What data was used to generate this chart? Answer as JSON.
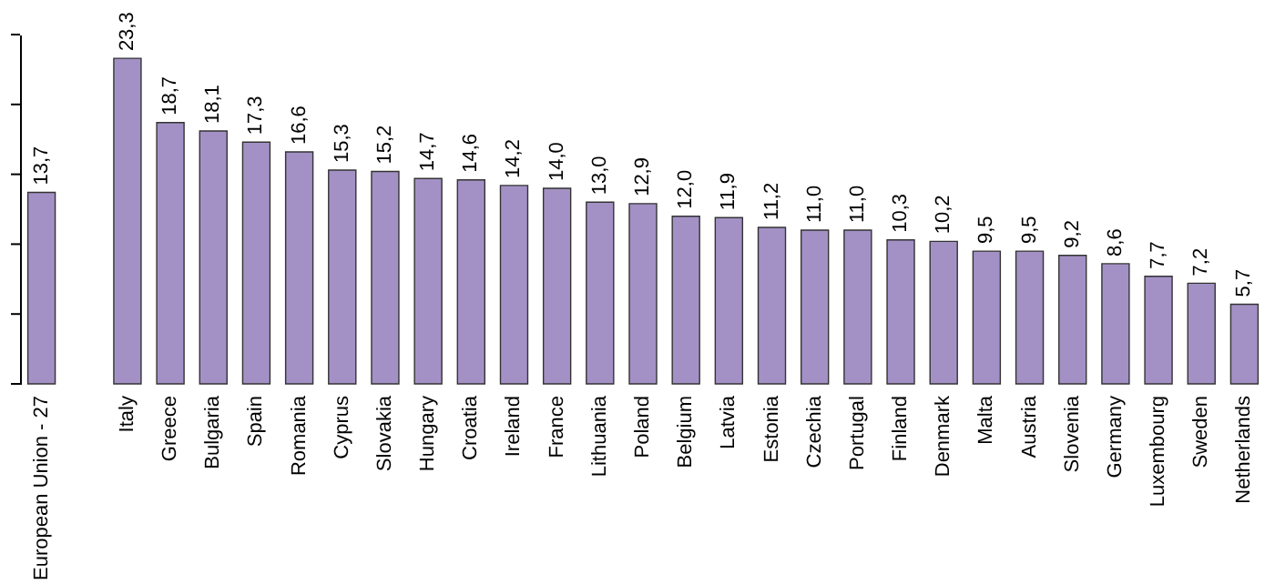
{
  "chart_data": {
    "type": "bar",
    "categories": [
      "European Union - 27",
      null,
      "Italy",
      "Greece",
      "Bulgaria",
      "Spain",
      "Romania",
      "Cyprus",
      "Slovakia",
      "Hungary",
      "Croatia",
      "Ireland",
      "France",
      "Lithuania",
      "Poland",
      "Belgium",
      "Latvia",
      "Estonia",
      "Czechia",
      "Portugal",
      "Finland",
      "Denmark",
      "Malta",
      "Austria",
      "Slovenia",
      "Germany",
      "Luxembourg",
      "Sweden",
      "Netherlands"
    ],
    "values": [
      13.7,
      null,
      23.3,
      18.7,
      18.1,
      17.3,
      16.6,
      15.3,
      15.2,
      14.7,
      14.6,
      14.2,
      14.0,
      13.0,
      12.9,
      12.0,
      11.9,
      11.2,
      11.0,
      11.0,
      10.3,
      10.2,
      9.5,
      9.5,
      9.2,
      8.6,
      7.7,
      7.2,
      5.7
    ],
    "value_labels": [
      "13,7",
      null,
      "23,3",
      "18,7",
      "18,1",
      "17,3",
      "16,6",
      "15,3",
      "15,2",
      "14,7",
      "14,6",
      "14,2",
      "14,0",
      "13,0",
      "12,9",
      "12,0",
      "11,9",
      "11,2",
      "11,0",
      "11,0",
      "10,3",
      "10,2",
      "9,5",
      "9,5",
      "9,2",
      "8,6",
      "7,7",
      "7,2",
      "5,7"
    ],
    "color": "#a391c6",
    "ylim": [
      0,
      25
    ],
    "yticks": [
      {
        "value": 0,
        "label": null
      },
      {
        "value": 5,
        "label": null
      },
      {
        "value": 10,
        "label": null
      },
      {
        "value": 15,
        "label": null
      },
      {
        "value": 20,
        "label": null
      },
      {
        "value": 25,
        "label": null
      }
    ],
    "tick_labels": "x",
    "grid": false
  }
}
